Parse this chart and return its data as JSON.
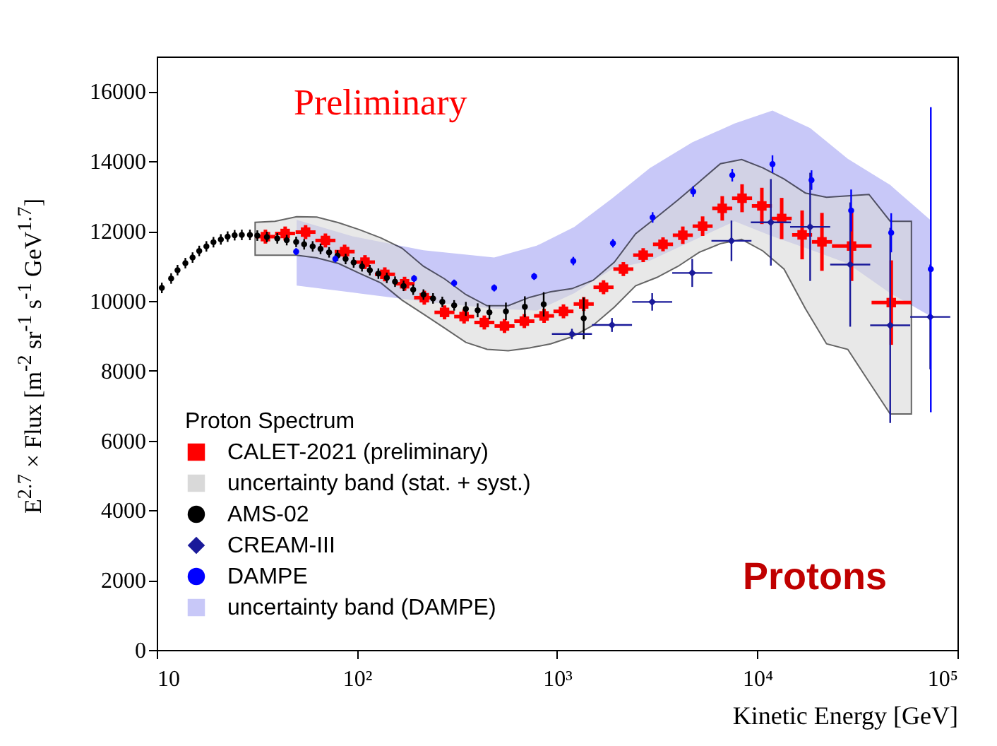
{
  "chart_data": {
    "type": "scatter",
    "xlabel": "Kinetic Energy [GeV]",
    "ylabel": "E$^{2.7}$ × Flux [m$^{-2}$ sr$^{-1}$ s$^{-1}$ GeV$^{1.7}$]",
    "legend_title": "Proton Spectrum",
    "legend": "bottom left",
    "log": "x",
    "grid": false,
    "annotations": [
      "Preliminary",
      "Protons"
    ],
    "xlim": [
      10,
      100000
    ],
    "xticks": [
      10,
      {
        "value": 100,
        "label": "10²"
      },
      {
        "value": 1000,
        "label": "10³"
      },
      {
        "value": 10000,
        "label": "10⁴"
      },
      {
        "value": 100000,
        "label": "10⁵"
      }
    ],
    "ylim": [
      0,
      17000
    ],
    "yticks": [
      0,
      2000,
      4000,
      6000,
      8000,
      10000,
      12000,
      14000,
      16000
    ],
    "series": [
      {
        "type": "scatter",
        "name": "CALET-2021 (preliminary)",
        "color": "#ff0000",
        "marker": "square",
        "x": [
          34.9,
          43.8,
          55.4,
          69.6,
          86.8,
          109.7,
          137.8,
          173,
          217,
          274,
          343,
          433,
          546,
          686,
          861,
          1076,
          1358,
          1706,
          2143,
          2692,
          3381,
          4246,
          5333,
          6683,
          8395,
          10540,
          13240,
          16750,
          21040,
          29580,
          46700
        ],
        "values": [
          11840,
          11930,
          11970,
          11730,
          11410,
          11110,
          10760,
          10490,
          10090,
          9670,
          9550,
          9380,
          9280,
          9420,
          9570,
          9700,
          9910,
          10390,
          10910,
          11310,
          11620,
          11880,
          12140,
          12650,
          12940,
          12720,
          12360,
          11890,
          11690,
          11570,
          9950
        ],
        "errors": [
          200,
          200,
          200,
          200,
          200,
          200,
          200,
          200,
          200,
          200,
          200,
          200,
          200,
          200,
          200,
          200,
          200,
          200,
          200,
          200,
          200,
          250,
          280,
          350,
          400,
          520,
          590,
          700,
          830,
          1000,
          1210
        ],
        "xerrors": [
          [
            31.1,
            39.2
          ],
          [
            39.0,
            49.1
          ],
          [
            49.4,
            62.1
          ],
          [
            62.0,
            78.1
          ],
          [
            77.4,
            97.4
          ],
          [
            97.8,
            123
          ],
          [
            123,
            155
          ],
          [
            154,
            194
          ],
          [
            193,
            243
          ],
          [
            244,
            307
          ],
          [
            306,
            385
          ],
          [
            386,
            486
          ],
          [
            487,
            613
          ],
          [
            611,
            770
          ],
          [
            767,
            966
          ],
          [
            959,
            1207
          ],
          [
            1210,
            1524
          ],
          [
            1520,
            1914
          ],
          [
            1910,
            2404
          ],
          [
            2399,
            3020
          ],
          [
            3013,
            3794
          ],
          [
            3784,
            4764
          ],
          [
            4753,
            5984
          ],
          [
            5956,
            7498
          ],
          [
            7482,
            9419
          ],
          [
            9394,
            11830
          ],
          [
            11800,
            14860
          ],
          [
            14930,
            18790
          ],
          [
            18750,
            23610
          ],
          [
            23610,
            37240
          ],
          [
            37240,
            58800
          ]
        ]
      },
      {
        "type": "area",
        "name": "uncertainty band (stat. + syst.)",
        "color": "#d9d9d9",
        "line_style": "solid",
        "values": [
          null,
          null,
          null,
          null,
          null,
          null,
          null,
          null,
          null,
          null,
          null,
          null,
          null,
          null,
          null,
          null,
          null,
          null,
          null,
          null,
          null,
          null,
          null,
          null,
          null,
          null,
          null,
          null,
          null,
          null,
          null,
          null
        ],
        "x": [
          31,
          39,
          50,
          63,
          81,
          103,
          132,
          168,
          215,
          274,
          350,
          447,
          570,
          728,
          929,
          1186,
          1514,
          1932,
          2466,
          3148,
          4018,
          5129,
          6546,
          8356,
          10670,
          13610,
          17380,
          22180,
          28310,
          36140,
          46130,
          58880
        ],
        "lower": [
          11310,
          11310,
          11310,
          11230,
          11070,
          10790,
          10510,
          10020,
          9620,
          9220,
          8810,
          8610,
          8570,
          8650,
          8770,
          8970,
          9300,
          9820,
          10430,
          10670,
          10990,
          11390,
          11640,
          11760,
          11430,
          10910,
          9780,
          8770,
          8610,
          7680,
          6760,
          6760
        ],
        "upper": [
          12250,
          12280,
          12410,
          12400,
          12240,
          12040,
          11800,
          11510,
          10990,
          10630,
          10180,
          9860,
          9860,
          10100,
          10260,
          10350,
          10590,
          11110,
          11920,
          12400,
          12890,
          13410,
          13930,
          14050,
          13810,
          13490,
          13090,
          12970,
          13010,
          13050,
          12280,
          12280
        ]
      },
      {
        "type": "scatter",
        "name": "AMS-02",
        "color": "#000000",
        "marker": "circle",
        "x": [
          10.6,
          11.8,
          12.7,
          13.9,
          15.1,
          16.3,
          17.7,
          19.2,
          20.9,
          22.6,
          24.5,
          26.6,
          29.2,
          31.8,
          35.5,
          40.0,
          44.6,
          49.7,
          54.5,
          60.1,
          65.8,
          72.6,
          80.0,
          87.8,
          96.3,
          106,
          116,
          128,
          141,
          155,
          171,
          191,
          215,
          240,
          267,
          306,
          350,
          401,
          459,
          555,
          690,
          857,
          1358
        ],
        "values": [
          10370,
          10640,
          10880,
          11080,
          11240,
          11430,
          11560,
          11680,
          11760,
          11840,
          11880,
          11890,
          11890,
          11870,
          11830,
          11790,
          11740,
          11690,
          11620,
          11560,
          11490,
          11390,
          11300,
          11200,
          11100,
          10990,
          10880,
          10780,
          10660,
          10550,
          10430,
          10320,
          10180,
          10070,
          9970,
          9870,
          9770,
          9730,
          9670,
          9700,
          9830,
          9900,
          9500
        ],
        "errors": [
          150,
          150,
          150,
          150,
          150,
          150,
          150,
          150,
          150,
          150,
          150,
          150,
          150,
          150,
          150,
          150,
          150,
          150,
          150,
          150,
          150,
          150,
          150,
          150,
          150,
          150,
          150,
          150,
          150,
          150,
          150,
          150,
          150,
          150,
          150,
          150,
          200,
          200,
          200,
          250,
          300,
          350,
          600
        ]
      },
      {
        "type": "scatter",
        "name": "CREAM-III",
        "color": "#1a1a9a",
        "marker": "diamond",
        "x": [
          1186,
          1880,
          2985,
          4732,
          7430,
          11690,
          18370,
          29120,
          46130,
          73120
        ],
        "values": [
          9050,
          9310,
          9970,
          10800,
          11720,
          12250,
          12120,
          11040,
          9300,
          9540
        ],
        "errors": [
          150,
          200,
          250,
          400,
          580,
          1240,
          1550,
          1780,
          [
            6500,
            12090
          ],
          1500
        ],
        "xerrors": [
          [
            942,
            1493
          ],
          [
            1493,
            2367
          ],
          [
            2371,
            3758
          ],
          [
            3759,
            5958
          ],
          [
            5902,
            9354
          ],
          [
            9285,
            14720
          ],
          [
            14590,
            23130
          ],
          [
            23130,
            36660
          ],
          [
            36640,
            58080
          ],
          [
            58080,
            92060
          ]
        ]
      },
      {
        "type": "scatter",
        "name": "DAMPE",
        "color": "#0000ff",
        "marker": "circle",
        "x": [
          49.7,
          78,
          193,
          306,
          485,
          768,
          1205,
          1901,
          3000,
          4786,
          7499,
          11910,
          18660,
          29440,
          46670,
          73600
        ],
        "values": [
          11410,
          11200,
          10640,
          10510,
          10370,
          10700,
          11140,
          11650,
          12390,
          13130,
          13600,
          13920,
          13460,
          12590,
          11950,
          10910
        ],
        "errors": [
          100,
          100,
          100,
          100,
          100,
          100,
          120,
          120,
          150,
          150,
          180,
          250,
          280,
          600,
          560,
          [
            6810,
            15550
          ]
        ]
      },
      {
        "type": "area",
        "name": "uncertainty band (DAMPE)",
        "color": "#c8c8f8",
        "values": [
          null,
          null,
          null,
          null,
          null,
          null,
          null,
          null,
          null,
          null,
          null,
          null,
          null,
          null,
          null
        ],
        "x": [
          50,
          95,
          215,
          485,
          791,
          1219,
          1880,
          2903,
          4732,
          7709,
          11910,
          18370,
          28310,
          46130,
          73120
        ],
        "lower": [
          10440,
          10240,
          9980,
          9780,
          9720,
          10220,
          10910,
          11150,
          11720,
          12280,
          11850,
          11470,
          11070,
          10220,
          9570
        ],
        "upper": [
          12320,
          11850,
          11450,
          11240,
          11580,
          12120,
          12930,
          13800,
          14540,
          15080,
          15450,
          14950,
          14070,
          13320,
          12320
        ]
      }
    ]
  }
}
